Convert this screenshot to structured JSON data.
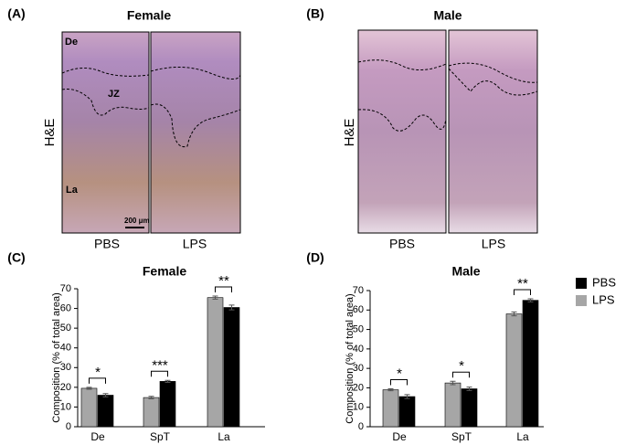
{
  "figure_labels": [
    "(A)",
    "(B)",
    "(C)",
    "(D)"
  ],
  "image_panels": [
    {
      "title": "Female",
      "row_label": "H&E",
      "columns": [
        "PBS",
        "LPS"
      ],
      "labels": [
        "De",
        "JZ",
        "La",
        "200 μm"
      ]
    },
    {
      "title": "Male",
      "row_label": "H&E",
      "columns": [
        "PBS",
        "LPS"
      ]
    }
  ],
  "chart_data": [
    {
      "type": "bar",
      "title": "Female",
      "y_label": "Composition (% of total area)",
      "categories": [
        "De",
        "SpT",
        "La"
      ],
      "series": [
        {
          "name": "LPS",
          "color": "#a6a6a6",
          "values": [
            19.5,
            14.8,
            65.5
          ],
          "errors": [
            0.5,
            0.6,
            0.8
          ]
        },
        {
          "name": "PBS",
          "color": "#000000",
          "values": [
            16,
            23,
            60.5
          ],
          "errors": [
            0.8,
            0.5,
            1.2
          ]
        }
      ],
      "significance": [
        "*",
        "***",
        "**"
      ],
      "ylim": [
        0,
        70
      ],
      "yticks": [
        0,
        10,
        20,
        30,
        40,
        50,
        60,
        70
      ],
      "grid": false,
      "legend": false
    },
    {
      "type": "bar",
      "title": "Male",
      "y_label": "Composition (% of total area)",
      "categories": [
        "De",
        "SpT",
        "La"
      ],
      "series": [
        {
          "name": "LPS",
          "color": "#a6a6a6",
          "values": [
            19,
            22.5,
            58
          ],
          "errors": [
            0.5,
            0.9,
            1.0
          ]
        },
        {
          "name": "PBS",
          "color": "#000000",
          "values": [
            15.5,
            19.5,
            65
          ],
          "errors": [
            1.0,
            0.9,
            0.8
          ]
        }
      ],
      "significance": [
        "*",
        "*",
        "**"
      ],
      "ylim": [
        0,
        70
      ],
      "yticks": [
        0,
        10,
        20,
        30,
        40,
        50,
        60,
        70
      ],
      "grid": false,
      "legend": "right"
    }
  ]
}
